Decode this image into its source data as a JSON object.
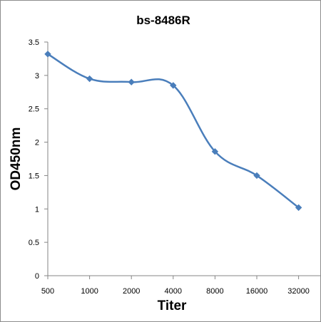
{
  "chart_data": {
    "type": "line",
    "title": "bs-8486R",
    "xlabel": "Titer",
    "ylabel": "OD450nm",
    "categories": [
      "500",
      "1000",
      "2000",
      "4000",
      "8000",
      "16000",
      "32000"
    ],
    "series": [
      {
        "values": [
          3.32,
          2.95,
          2.9,
          2.85,
          1.86,
          1.5,
          1.02
        ]
      }
    ],
    "ylim": [
      0,
      3.5
    ],
    "yticks": [
      "0",
      "0.5",
      "1",
      "1.5",
      "2",
      "2.5",
      "3",
      "3.5"
    ],
    "grid": false,
    "line_color": "#4a7ebb",
    "smooth": true
  }
}
